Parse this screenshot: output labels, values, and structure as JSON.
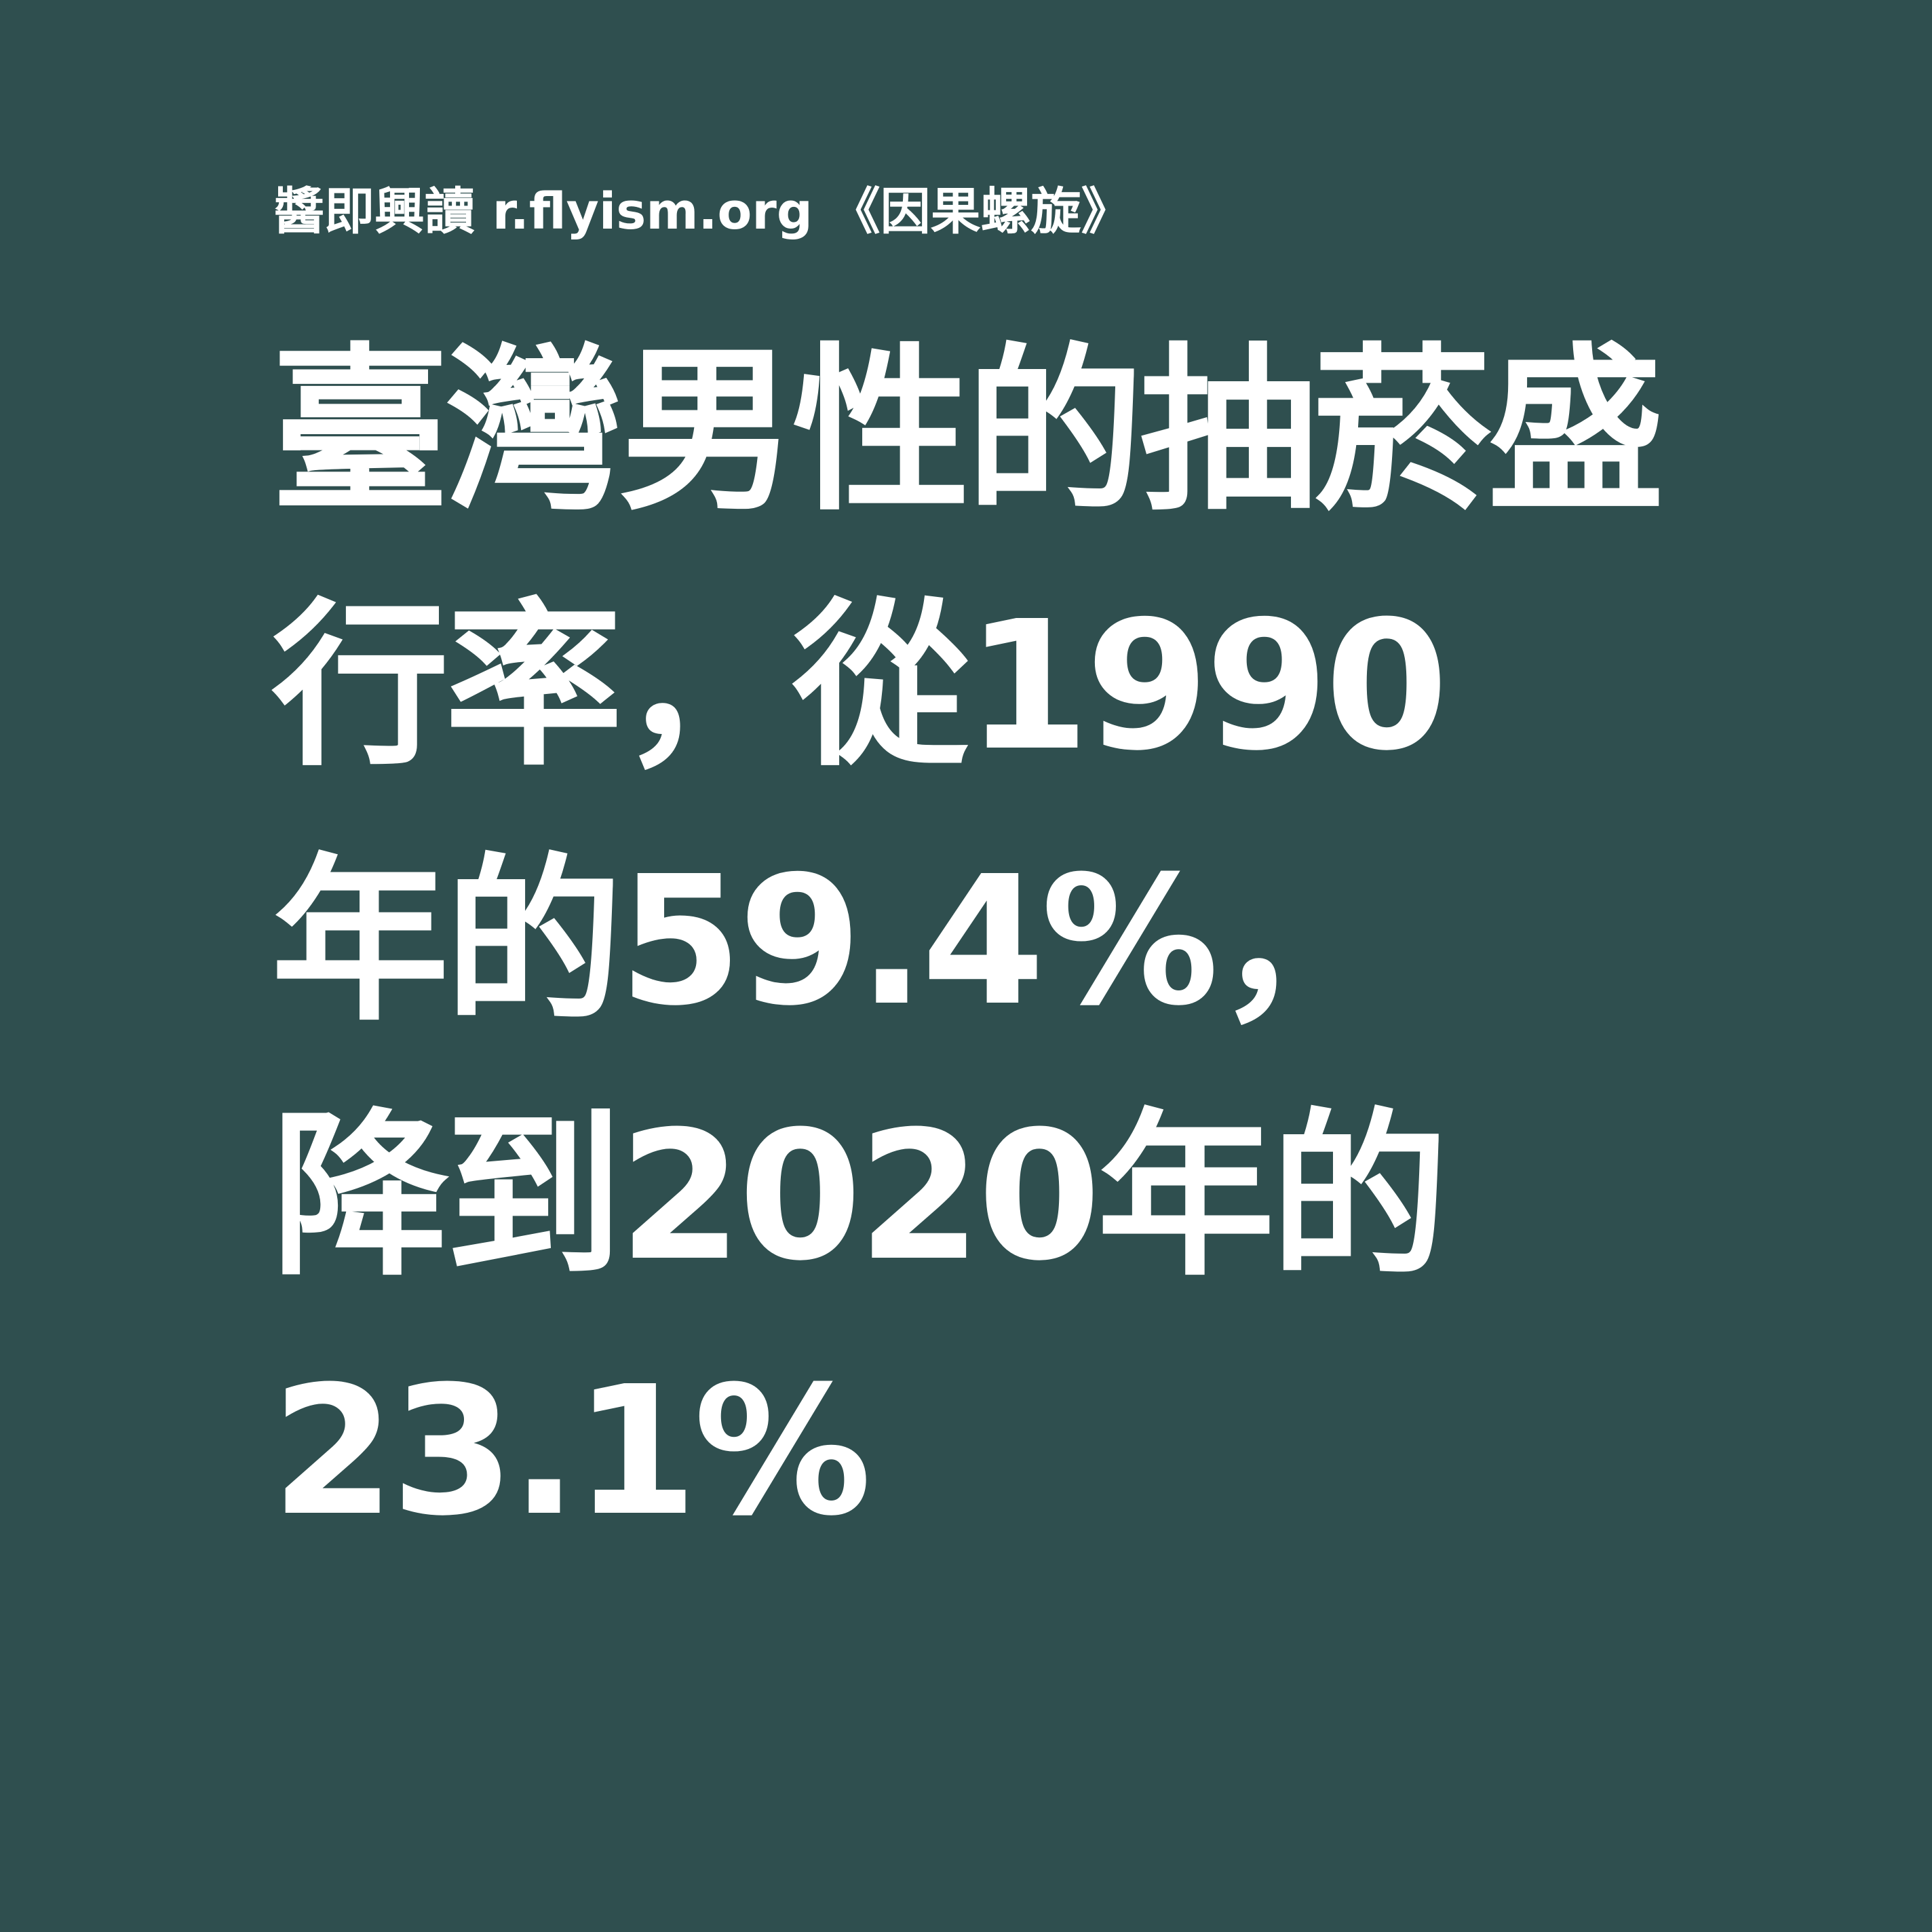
{
  "source": {
    "text": "醬即興讀 r.flyism.org 《因果螺旋》"
  },
  "headline": {
    "lines": [
      "臺灣男性的抽菸盛",
      "行率，從1990",
      "年的59.4%，",
      "降到2020年的",
      "23.1%"
    ]
  },
  "colors": {
    "background": "#2f4f4f",
    "text": "#ffffff"
  }
}
